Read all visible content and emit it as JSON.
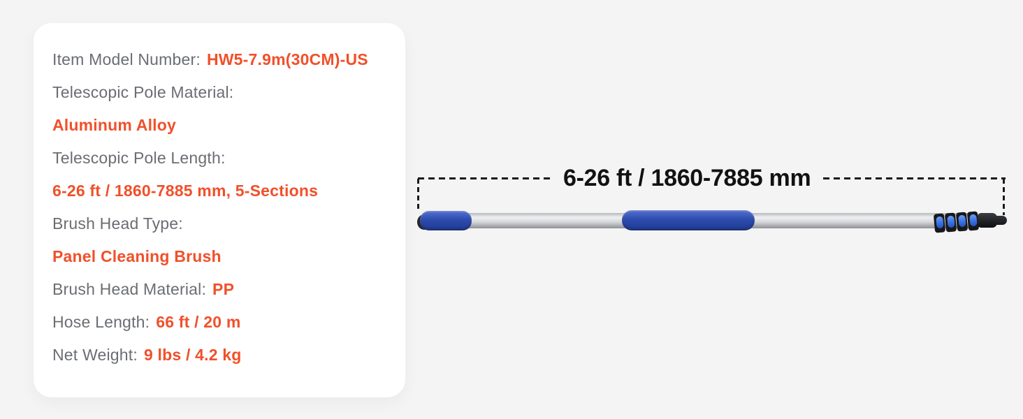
{
  "colors": {
    "accent_orange": "#f1502a",
    "label_gray": "#6a6d72",
    "dimension_text": "#121212",
    "page_background": "#f4f4f5",
    "card_background": "#ffffff",
    "pole_grip_blue": "#2d4cae",
    "clamp_lever_blue": "#3a72e2",
    "pole_silver": "#d6d7da"
  },
  "spec_card": {
    "rows": [
      {
        "label": "Item Model Number:",
        "value": "HW5-7.9m(30CM)-US"
      },
      {
        "label": "Telescopic Pole Material:",
        "value": "Aluminum Alloy"
      },
      {
        "label": "Telescopic Pole Length:",
        "value": "6-26 ft / 1860-7885 mm, 5-Sections"
      },
      {
        "label": "Brush Head Type:",
        "value": "Panel Cleaning Brush"
      },
      {
        "label": "Brush Head Material:",
        "value": "PP"
      },
      {
        "label": "Hose Length:",
        "value": "66 ft / 20 m"
      },
      {
        "label": "Net Weight:",
        "value": "9 lbs / 4.2 kg"
      }
    ]
  },
  "pole_diagram": {
    "dimension_label": "6-26 ft / 1860-7885 mm"
  }
}
